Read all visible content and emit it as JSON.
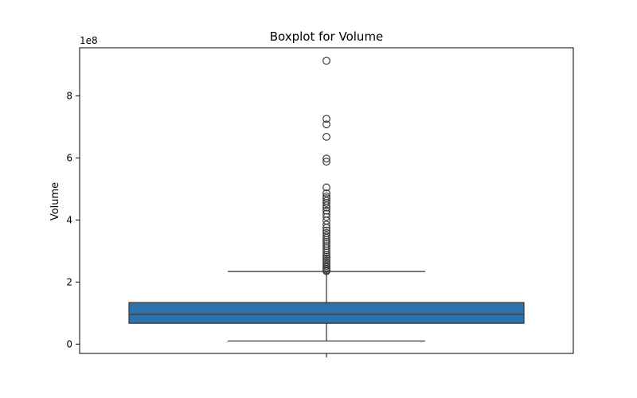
{
  "chart_data": {
    "type": "box",
    "title": "Boxplot for Volume",
    "xlabel": "",
    "ylabel": "Volume",
    "y_scale_label": "1e8",
    "y_scale": 100000000,
    "ylim": [
      -0.3,
      9.55
    ],
    "yticks": [
      0,
      2,
      4,
      6,
      8
    ],
    "colors": {
      "box_fill": "#2e72ad",
      "line": "#3d3d3d"
    },
    "box": {
      "whisker_low": 0.1,
      "q1": 0.67,
      "median": 0.96,
      "q3": 1.34,
      "whisker_high": 2.34
    },
    "outliers": [
      9.13,
      7.26,
      7.08,
      6.68,
      5.98,
      5.88,
      5.05,
      4.86,
      4.76,
      4.7,
      4.62,
      4.55,
      4.47,
      4.4,
      4.3,
      4.2,
      4.1,
      3.98,
      3.85,
      3.75,
      3.66,
      3.58,
      3.5,
      3.43,
      3.36,
      3.3,
      3.23,
      3.16,
      3.09,
      3.02,
      2.95,
      2.88,
      2.82,
      2.76,
      2.7,
      2.64,
      2.58,
      2.52,
      2.47,
      2.42,
      2.38,
      2.35
    ]
  }
}
